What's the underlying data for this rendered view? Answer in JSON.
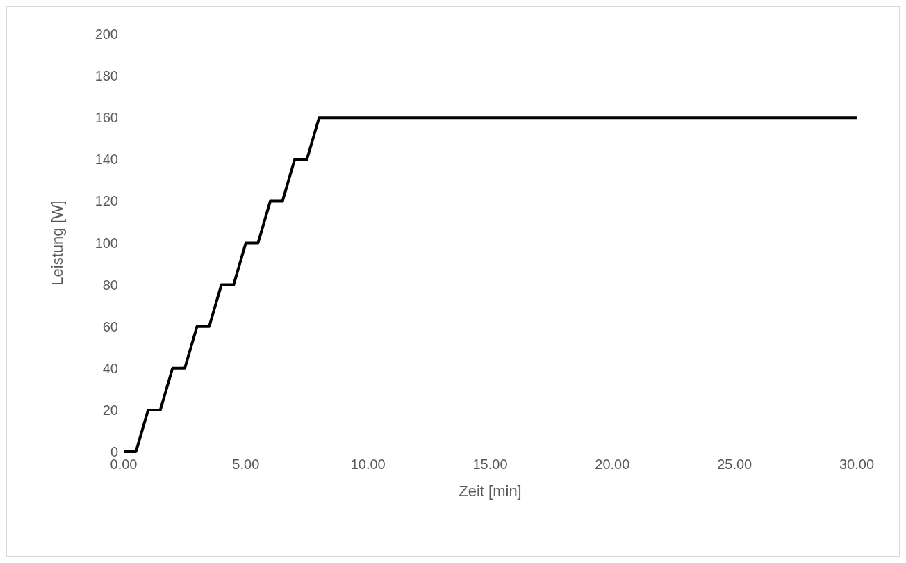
{
  "chart_data": {
    "type": "line",
    "xlabel": "Zeit [min]",
    "ylabel": "Leistung [W]",
    "x": [
      0,
      0.5,
      1,
      1.5,
      2,
      2.5,
      3,
      3.5,
      4,
      4.5,
      5,
      5.5,
      6,
      6.5,
      7,
      7.5,
      8,
      30
    ],
    "series": [
      {
        "color": "#000000",
        "values": [
          0,
          0,
          20,
          20,
          40,
          40,
          60,
          60,
          80,
          80,
          100,
          100,
          120,
          120,
          140,
          140,
          160,
          160
        ]
      }
    ],
    "xlim": [
      0,
      30
    ],
    "ylim": [
      0,
      200
    ],
    "xticks": [
      {
        "value": 0,
        "label": "0.00"
      },
      {
        "value": 5,
        "label": "5.00"
      },
      {
        "value": 10,
        "label": "10.00"
      },
      {
        "value": 15,
        "label": "15.00"
      },
      {
        "value": 20,
        "label": "20.00"
      },
      {
        "value": 25,
        "label": "25.00"
      },
      {
        "value": 30,
        "label": "30.00"
      }
    ],
    "yticks": [
      0,
      20,
      40,
      60,
      80,
      100,
      120,
      140,
      160,
      180,
      200
    ],
    "grid": false,
    "marker": "none",
    "line_style": "solid"
  }
}
